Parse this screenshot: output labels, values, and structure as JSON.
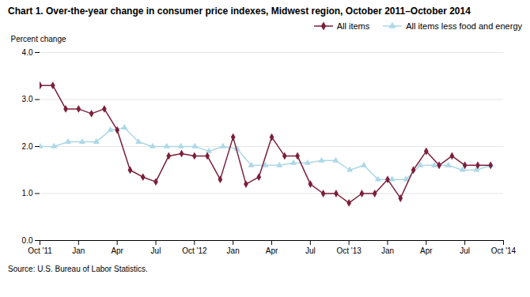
{
  "chart_data": {
    "type": "line",
    "title": "Chart 1. Over-the-year change in consumer price indexes, Midwest region, October 2011–October 2014",
    "ylabel": "Percent change",
    "caption": "Source: U.S. Bureau of Labor Statistics.",
    "xlim": [
      0,
      36
    ],
    "xticks": [
      {
        "value": 0,
        "label": "Oct '11"
      },
      {
        "value": 3,
        "label": "Jan"
      },
      {
        "value": 6,
        "label": "Apr"
      },
      {
        "value": 9,
        "label": "Jul"
      },
      {
        "value": 12,
        "label": "Oct '12"
      },
      {
        "value": 15,
        "label": "Jan"
      },
      {
        "value": 18,
        "label": "Apr"
      },
      {
        "value": 21,
        "label": "Jul"
      },
      {
        "value": 24,
        "label": "Oct '13"
      },
      {
        "value": 27,
        "label": "Jan"
      },
      {
        "value": 30,
        "label": "Apr"
      },
      {
        "value": 33,
        "label": "Jul"
      },
      {
        "value": 36,
        "label": "Oct '14"
      }
    ],
    "ylim": [
      0.0,
      4.0
    ],
    "yticks": [
      {
        "value": 0,
        "label": "0.0"
      },
      {
        "value": 1,
        "label": "1.0"
      },
      {
        "value": 2,
        "label": "2.0"
      },
      {
        "value": 3,
        "label": "3.0"
      },
      {
        "value": 4,
        "label": "4.0"
      }
    ],
    "grid": true,
    "legend": "upper right",
    "series": [
      {
        "name": "All items",
        "color": "#7B1F3A",
        "marker": "diamond",
        "x": [
          0,
          1,
          2,
          3,
          4,
          5,
          6,
          7,
          8,
          9,
          10,
          11,
          12,
          13,
          14,
          15,
          16,
          17,
          18,
          19,
          20,
          21,
          22,
          23,
          24,
          25,
          26,
          27,
          28,
          29,
          30,
          31,
          32,
          33,
          34,
          35
        ],
        "values": [
          3.3,
          3.3,
          2.8,
          2.8,
          2.7,
          2.8,
          2.35,
          1.5,
          1.35,
          1.25,
          1.8,
          1.85,
          1.8,
          1.8,
          1.3,
          2.2,
          1.2,
          1.35,
          2.2,
          1.8,
          1.8,
          1.2,
          1.0,
          1.0,
          0.8,
          1.0,
          1.0,
          1.3,
          0.9,
          1.5,
          1.9,
          1.6,
          1.8,
          1.6,
          1.6,
          1.6
        ]
      },
      {
        "name": "All items less food and energy",
        "color": "#ADD8E6",
        "marker": "triangle",
        "x": [
          0,
          1.09375,
          2.1875,
          3.28125,
          4.375,
          5.46875,
          6.5625,
          7.65625,
          8.75,
          9.84375,
          10.9375,
          12.03125,
          13.125,
          14.21875,
          15.3125,
          16.40625,
          17.5,
          18.59375,
          19.6875,
          20.78125,
          21.875,
          22.96875,
          24.0625,
          25.15625,
          26.25,
          27.34375,
          28.4375,
          29.53125,
          30.625,
          31.71875,
          32.8125,
          33.90625,
          35
        ],
        "values": [
          2.0,
          2.0,
          2.1,
          2.1,
          2.1,
          2.35,
          2.4,
          2.1,
          2.0,
          2.0,
          2.0,
          2.0,
          1.9,
          2.0,
          1.95,
          1.6,
          1.6,
          1.6,
          1.65,
          1.65,
          1.7,
          1.7,
          1.5,
          1.6,
          1.3,
          1.3,
          1.3,
          1.6,
          1.6,
          1.6,
          1.5,
          1.5,
          1.6
        ]
      }
    ]
  }
}
